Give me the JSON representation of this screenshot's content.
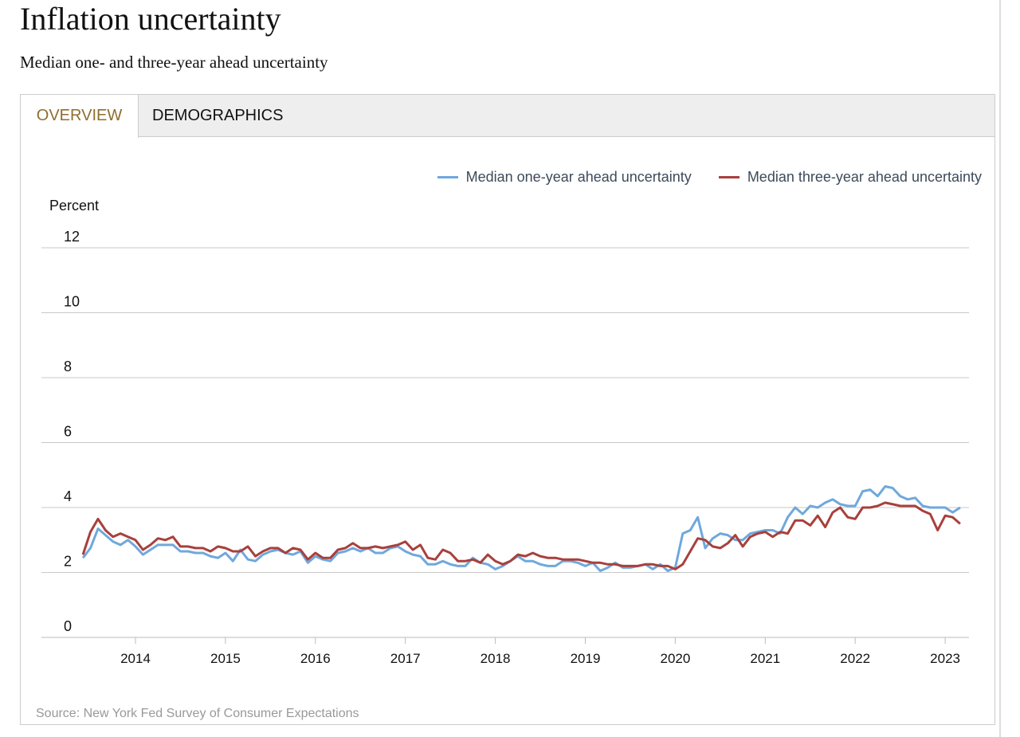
{
  "header": {
    "title": "Inflation uncertainty",
    "subtitle": "Median one- and three-year ahead uncertainty"
  },
  "tabs": [
    {
      "label": "OVERVIEW",
      "active": true
    },
    {
      "label": "DEMOGRAPHICS",
      "active": false
    }
  ],
  "colors": {
    "one_year": "#6fa8dc",
    "three_year": "#a8403c",
    "active_tab": "#8f6d2f"
  },
  "source": "Source: New York Fed Survey of Consumer Expectations",
  "chart_data": {
    "type": "line",
    "ylabel": "Percent",
    "ylim": [
      0,
      12
    ],
    "yticks": [
      "0",
      "2",
      "4",
      "6",
      "8",
      "10",
      "12"
    ],
    "xticks": [
      "2014",
      "2015",
      "2016",
      "2017",
      "2018",
      "2019",
      "2020",
      "2021",
      "2022",
      "2023"
    ],
    "grid": true,
    "legend_position": "top-right",
    "x_start": "2013-06",
    "x_end": "2023-03",
    "frequency": "monthly",
    "series": [
      {
        "name": "Median one-year ahead uncertainty",
        "values": [
          2.45,
          2.75,
          3.35,
          3.15,
          2.95,
          2.85,
          3.0,
          2.8,
          2.55,
          2.7,
          2.85,
          2.85,
          2.85,
          2.65,
          2.65,
          2.6,
          2.6,
          2.5,
          2.45,
          2.6,
          2.35,
          2.7,
          2.4,
          2.35,
          2.55,
          2.65,
          2.7,
          2.6,
          2.55,
          2.65,
          2.3,
          2.5,
          2.4,
          2.35,
          2.6,
          2.65,
          2.75,
          2.65,
          2.75,
          2.6,
          2.6,
          2.75,
          2.8,
          2.65,
          2.55,
          2.5,
          2.25,
          2.25,
          2.35,
          2.25,
          2.2,
          2.2,
          2.45,
          2.3,
          2.25,
          2.1,
          2.2,
          2.35,
          2.5,
          2.35,
          2.35,
          2.25,
          2.2,
          2.2,
          2.35,
          2.35,
          2.3,
          2.2,
          2.3,
          2.05,
          2.15,
          2.3,
          2.15,
          2.15,
          2.2,
          2.25,
          2.1,
          2.25,
          2.05,
          2.15,
          3.2,
          3.3,
          3.7,
          2.75,
          3.05,
          3.2,
          3.15,
          3.0,
          3.0,
          3.2,
          3.25,
          3.3,
          3.3,
          3.2,
          3.7,
          4.0,
          3.8,
          4.05,
          4.0,
          4.15,
          4.25,
          4.1,
          4.05,
          4.05,
          4.5,
          4.55,
          4.35,
          4.65,
          4.6,
          4.35,
          4.25,
          4.3,
          4.05,
          4.0,
          4.0,
          4.0,
          3.85,
          4.0
        ]
      },
      {
        "name": "Median three-year ahead uncertainty",
        "values": [
          2.55,
          3.25,
          3.65,
          3.3,
          3.1,
          3.2,
          3.1,
          3.0,
          2.7,
          2.85,
          3.05,
          3.0,
          3.1,
          2.8,
          2.8,
          2.75,
          2.75,
          2.65,
          2.8,
          2.75,
          2.65,
          2.65,
          2.8,
          2.5,
          2.65,
          2.75,
          2.75,
          2.6,
          2.75,
          2.7,
          2.4,
          2.6,
          2.45,
          2.45,
          2.7,
          2.75,
          2.9,
          2.75,
          2.75,
          2.8,
          2.75,
          2.8,
          2.85,
          2.95,
          2.7,
          2.85,
          2.45,
          2.4,
          2.7,
          2.6,
          2.35,
          2.35,
          2.4,
          2.3,
          2.55,
          2.35,
          2.25,
          2.35,
          2.55,
          2.5,
          2.6,
          2.5,
          2.45,
          2.45,
          2.4,
          2.4,
          2.4,
          2.35,
          2.3,
          2.3,
          2.25,
          2.25,
          2.2,
          2.2,
          2.2,
          2.25,
          2.25,
          2.2,
          2.2,
          2.1,
          2.25,
          2.65,
          3.05,
          3.0,
          2.8,
          2.75,
          2.9,
          3.15,
          2.8,
          3.1,
          3.2,
          3.25,
          3.1,
          3.25,
          3.2,
          3.6,
          3.6,
          3.45,
          3.75,
          3.4,
          3.85,
          4.0,
          3.7,
          3.65,
          4.0,
          4.0,
          4.05,
          4.15,
          4.1,
          4.05,
          4.05,
          4.05,
          3.9,
          3.8,
          3.3,
          3.75,
          3.7,
          3.5
        ]
      }
    ]
  }
}
